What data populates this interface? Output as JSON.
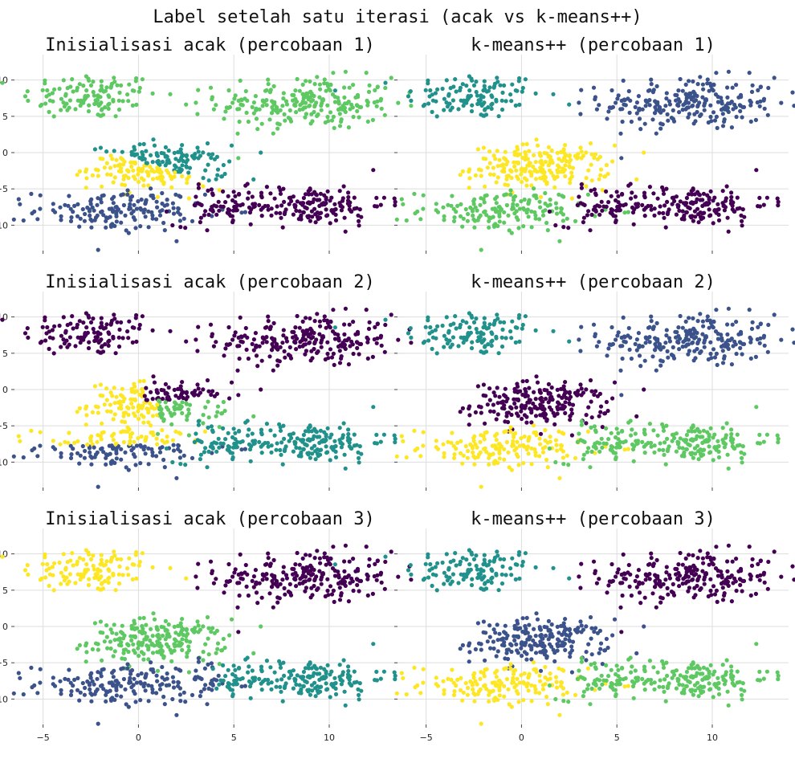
{
  "figure": {
    "suptitle": "Label setelah satu iterasi (acak vs k-means++)"
  },
  "palette": {
    "c0": "#440154",
    "c1": "#3b528b",
    "c2": "#21918c",
    "c3": "#5ec962",
    "c4": "#fde725"
  },
  "axes_common": {
    "xlim": [
      -6.5,
      14
    ],
    "ylim": [
      -13.5,
      13.5
    ],
    "xticks": [
      -5,
      0,
      5,
      10
    ],
    "yticks": [
      10,
      5,
      0,
      -5,
      -10
    ],
    "grid": true
  },
  "blobs": [
    {
      "name": "top-left",
      "cx": -2.5,
      "cy": 7.8,
      "sx": 1.8,
      "sy": 1.6,
      "n": 120
    },
    {
      "name": "top-right",
      "cx": 8.8,
      "cy": 6.8,
      "sx": 2.3,
      "sy": 1.8,
      "n": 230
    },
    {
      "name": "center",
      "cx": 1.0,
      "cy": -2.0,
      "sx": 1.8,
      "sy": 1.5,
      "n": 220
    },
    {
      "name": "bottom-left",
      "cx": -1.0,
      "cy": -8.0,
      "sx": 2.2,
      "sy": 1.4,
      "n": 160
    },
    {
      "name": "bottom-mid",
      "cx": 4.5,
      "cy": -7.5,
      "sx": 1.3,
      "sy": 1.3,
      "n": 60
    },
    {
      "name": "bottom-right",
      "cx": 9.0,
      "cy": -7.2,
      "sx": 2.0,
      "sy": 1.4,
      "n": 160
    }
  ],
  "chart_data": [
    {
      "type": "scatter",
      "title": "Inisialisasi acak (percobaan 1)",
      "assign": {
        "top-left": "c3",
        "top-right": "c3",
        "center": "split:c2|c4:diag",
        "bottom-left": "c1",
        "bottom-mid": "c0",
        "bottom-right": "c0"
      }
    },
    {
      "type": "scatter",
      "title": "k-means++ (percobaan 1)",
      "assign": {
        "top-left": "c2",
        "top-right": "c1",
        "center": "c4",
        "bottom-left": "c3",
        "bottom-mid": "c0",
        "bottom-right": "c0"
      }
    },
    {
      "type": "scatter",
      "title": "Inisialisasi acak (percobaan 2)",
      "assign": {
        "top-left": "c0",
        "top-right": "c0",
        "center": "split:c0|c4|c3:tri",
        "bottom-left": "split:c4|c1:y",
        "bottom-mid": "c2",
        "bottom-right": "c2"
      }
    },
    {
      "type": "scatter",
      "title": "k-means++ (percobaan 2)",
      "assign": {
        "top-left": "c2",
        "top-right": "c1",
        "center": "c0",
        "bottom-left": "c4",
        "bottom-mid": "c3",
        "bottom-right": "c3"
      }
    },
    {
      "type": "scatter",
      "title": "Inisialisasi acak (percobaan 3)",
      "assign": {
        "top-left": "c4",
        "top-right": "c0",
        "center": "c3",
        "bottom-left": "c1",
        "bottom-mid": "split:c1|c2:x",
        "bottom-right": "c2"
      }
    },
    {
      "type": "scatter",
      "title": "k-means++ (percobaan 3)",
      "assign": {
        "top-left": "c2",
        "top-right": "c0",
        "center": "c1",
        "bottom-left": "c4",
        "bottom-mid": "c3",
        "bottom-right": "c3"
      }
    }
  ]
}
